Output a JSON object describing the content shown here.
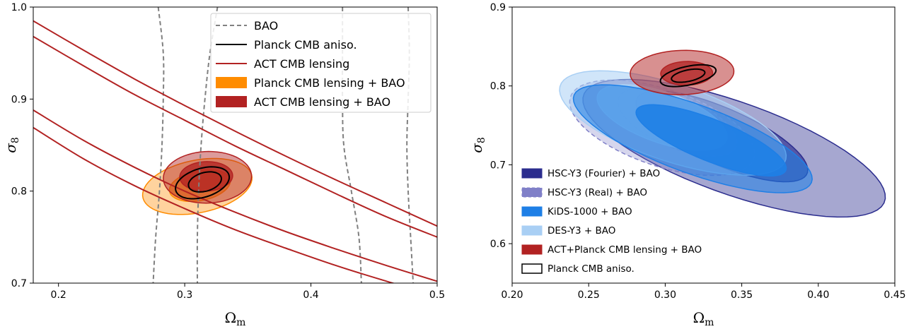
{
  "chart_data": [
    {
      "type": "contour",
      "xlabel_symbol": "Ω",
      "xlabel_sub": "m",
      "ylabel_symbol": "σ",
      "ylabel_sub": "8",
      "xlim": [
        0.18,
        0.5
      ],
      "ylim": [
        0.7,
        1.0
      ],
      "xticks": [
        0.2,
        0.3,
        0.4,
        0.5
      ],
      "yticks": [
        0.7,
        0.8,
        0.9,
        1.0
      ],
      "xtick_labels": [
        "0.2",
        "0.3",
        "0.4",
        "0.5"
      ],
      "ytick_labels": [
        "0.7",
        "0.8",
        "0.9",
        "1.0"
      ],
      "legend_position": "top-right",
      "series": [
        {
          "name": "BAO",
          "style": "dashed",
          "color": "#808080",
          "curves": [
            [
              [
                0.279,
                1.0
              ],
              [
                0.283,
                0.95
              ],
              [
                0.283,
                0.9
              ],
              [
                0.282,
                0.85
              ],
              [
                0.28,
                0.8
              ],
              [
                0.277,
                0.75
              ],
              [
                0.275,
                0.7
              ]
            ],
            [
              [
                0.326,
                1.0
              ],
              [
                0.32,
                0.95
              ],
              [
                0.316,
                0.9
              ],
              [
                0.313,
                0.85
              ],
              [
                0.311,
                0.8
              ],
              [
                0.31,
                0.75
              ],
              [
                0.31,
                0.7
              ]
            ],
            [
              [
                0.425,
                1.0
              ],
              [
                0.425,
                0.95
              ],
              [
                0.425,
                0.9
              ],
              [
                0.426,
                0.85
              ],
              [
                0.432,
                0.8
              ],
              [
                0.438,
                0.75
              ],
              [
                0.44,
                0.7
              ]
            ],
            [
              [
                0.477,
                1.0
              ],
              [
                0.478,
                0.95
              ],
              [
                0.477,
                0.9
              ],
              [
                0.476,
                0.85
              ],
              [
                0.477,
                0.8
              ],
              [
                0.479,
                0.75
              ],
              [
                0.481,
                0.7
              ]
            ]
          ]
        },
        {
          "name": "Planck CMB aniso.",
          "style": "solid",
          "color": "#000000",
          "contours": [
            {
              "level": "68%",
              "cx": 0.316,
              "cy": 0.81,
              "a": 0.014,
              "b": 0.0097,
              "rot": 30
            },
            {
              "level": "95%",
              "cx": 0.314,
              "cy": 0.809,
              "a": 0.023,
              "b": 0.015,
              "rot": 30
            }
          ]
        },
        {
          "name": "ACT CMB lensing",
          "style": "solid",
          "color": "#b22222",
          "curves": [
            [
              [
                0.18,
                0.985
              ],
              [
                0.22,
                0.953
              ],
              [
                0.26,
                0.922
              ],
              [
                0.3,
                0.893
              ],
              [
                0.34,
                0.865
              ],
              [
                0.38,
                0.838
              ],
              [
                0.42,
                0.812
              ],
              [
                0.46,
                0.787
              ],
              [
                0.5,
                0.762
              ]
            ],
            [
              [
                0.18,
                0.968
              ],
              [
                0.22,
                0.936
              ],
              [
                0.26,
                0.905
              ],
              [
                0.3,
                0.877
              ],
              [
                0.34,
                0.849
              ],
              [
                0.38,
                0.823
              ],
              [
                0.42,
                0.797
              ],
              [
                0.46,
                0.772
              ],
              [
                0.5,
                0.75
              ]
            ],
            [
              [
                0.18,
                0.888
              ],
              [
                0.22,
                0.855
              ],
              [
                0.26,
                0.826
              ],
              [
                0.3,
                0.8
              ],
              [
                0.34,
                0.777
              ],
              [
                0.38,
                0.756
              ],
              [
                0.42,
                0.737
              ],
              [
                0.46,
                0.719
              ],
              [
                0.5,
                0.702
              ]
            ],
            [
              [
                0.18,
                0.869
              ],
              [
                0.22,
                0.835
              ],
              [
                0.26,
                0.806
              ],
              [
                0.3,
                0.781
              ],
              [
                0.34,
                0.758
              ],
              [
                0.38,
                0.738
              ],
              [
                0.42,
                0.719
              ],
              [
                0.46,
                0.702
              ],
              [
                0.5,
                0.686
              ]
            ]
          ]
        },
        {
          "name": "Planck CMB lensing + BAO",
          "style": "filled",
          "color": "#ff8c00",
          "contours": [
            {
              "level": "68%",
              "cx": 0.312,
              "cy": 0.806,
              "a": 0.025,
              "b": 0.016,
              "rot": 20
            },
            {
              "level": "95%",
              "cx": 0.31,
              "cy": 0.805,
              "a": 0.045,
              "b": 0.028,
              "rot": 20
            }
          ]
        },
        {
          "name": "ACT CMB lensing + BAO",
          "style": "filled",
          "color": "#b22222",
          "contours": [
            {
              "level": "68%",
              "cx": 0.317,
              "cy": 0.816,
              "a": 0.021,
              "b": 0.016,
              "rot": 5
            },
            {
              "level": "95%",
              "cx": 0.318,
              "cy": 0.815,
              "a": 0.035,
              "b": 0.028,
              "rot": 5
            }
          ]
        }
      ]
    },
    {
      "type": "contour",
      "xlabel_symbol": "Ω",
      "xlabel_sub": "m",
      "ylabel_symbol": "σ",
      "ylabel_sub": "8",
      "xlim": [
        0.2,
        0.45
      ],
      "ylim": [
        0.55,
        0.9
      ],
      "xticks": [
        0.2,
        0.25,
        0.3,
        0.35,
        0.4,
        0.45
      ],
      "yticks": [
        0.6,
        0.7,
        0.8,
        0.9
      ],
      "xtick_labels": [
        "0.20",
        "0.25",
        "0.30",
        "0.35",
        "0.40",
        "0.45"
      ],
      "ytick_labels": [
        "0.6",
        "0.7",
        "0.8",
        "0.9"
      ],
      "legend_position": "bottom-left",
      "series": [
        {
          "name": "HSC-Y3 (Fourier) + BAO",
          "style": "filled",
          "color": "#2b2d8e",
          "contours": [
            {
              "level": "68%",
              "cx": 0.337,
              "cy": 0.736,
              "a": 0.075,
              "b": 0.029,
              "rot": -46
            },
            {
              "level": "95%",
              "cx": 0.345,
              "cy": 0.721,
              "a": 0.122,
              "b": 0.05,
              "rot": -40
            }
          ]
        },
        {
          "name": "HSC-Y3 (Real) + BAO",
          "style": "filled-dashed",
          "color": "#8080c8",
          "contours": [
            {
              "level": "68%",
              "cx": 0.308,
              "cy": 0.754,
              "a": 0.052,
              "b": 0.026,
              "rot": -50
            },
            {
              "level": "95%",
              "cx": 0.298,
              "cy": 0.747,
              "a": 0.075,
              "b": 0.041,
              "rot": -45
            }
          ]
        },
        {
          "name": "KiDS-1000  + BAO",
          "style": "filled",
          "color": "#1e7fe6",
          "contours": [
            {
              "level": "68%",
              "cx": 0.33,
              "cy": 0.731,
              "a": 0.063,
              "b": 0.022,
              "rot": -42
            },
            {
              "level": "95%",
              "cx": 0.318,
              "cy": 0.733,
              "a": 0.097,
              "b": 0.037,
              "rot": -40
            }
          ]
        },
        {
          "name": "DES-Y3 + BAO",
          "style": "filled",
          "color": "#a9cff4",
          "contours": [
            {
              "level": "68%",
              "cx": 0.298,
              "cy": 0.76,
              "a": 0.053,
              "b": 0.027,
              "rot": -44
            },
            {
              "level": "95%",
              "cx": 0.305,
              "cy": 0.753,
              "a": 0.09,
              "b": 0.042,
              "rot": -40
            }
          ]
        },
        {
          "name": "ACT+Planck CMB lensing + BAO",
          "style": "filled",
          "color": "#b22222",
          "contours": [
            {
              "level": "68%",
              "cx": 0.314,
              "cy": 0.816,
              "a": 0.017,
              "b": 0.015,
              "rot": 8
            },
            {
              "level": "95%",
              "cx": 0.311,
              "cy": 0.817,
              "a": 0.034,
              "b": 0.028,
              "rot": 8
            }
          ]
        },
        {
          "name": "Planck CMB aniso.",
          "style": "solid",
          "color": "#000000",
          "contours": [
            {
              "level": "68%",
              "cx": 0.315,
              "cy": 0.813,
              "a": 0.012,
              "b": 0.0067,
              "rot": 30
            },
            {
              "level": "95%",
              "cx": 0.315,
              "cy": 0.813,
              "a": 0.02,
              "b": 0.011,
              "rot": 30
            }
          ]
        }
      ]
    }
  ]
}
